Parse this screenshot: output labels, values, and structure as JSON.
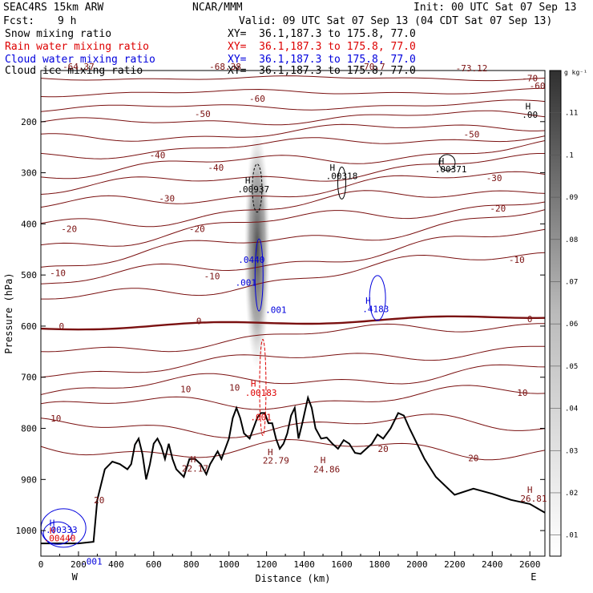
{
  "header": {
    "model": "SEAC4RS 15km ARW",
    "org": "NCAR/MMM",
    "init": "Init: 00 UTC Sat 07 Sep 13",
    "fcst_label": "Fcst:",
    "fcst_value": "9 h",
    "valid": "Valid: 09 UTC Sat 07 Sep 13 (04 CDT Sat 07 Sep 13)",
    "fields": [
      {
        "label": "Snow mixing ratio",
        "xy": "XY=  36.1,187.3 to 175.8, 77.0",
        "color": "#000000"
      },
      {
        "label": "Rain water mixing ratio",
        "xy": "XY=  36.1,187.3 to 175.8, 77.0",
        "color": "#dd0000"
      },
      {
        "label": "Cloud water mixing ratio",
        "xy": "XY=  36.1,187.3 to 175.8, 77.0",
        "color": "#0000dd"
      },
      {
        "label": "Cloud ice mixing ratio",
        "xy": "XY=  36.1,187.3 to 175.8, 77.0",
        "color": "#000000"
      }
    ]
  },
  "chart_data": {
    "type": "cross-section",
    "xlabel": "Distance (km)",
    "ylabel": "Pressure (hPa)",
    "xlim": [
      0,
      2680
    ],
    "ylim": [
      1050,
      100
    ],
    "x_ticks": [
      0,
      200,
      400,
      600,
      800,
      1000,
      1200,
      1400,
      1600,
      1800,
      2000,
      2200,
      2400,
      2600
    ],
    "y_ticks": [
      200,
      300,
      400,
      500,
      600,
      700,
      800,
      900,
      1000
    ],
    "x_end_labels": {
      "left": "W",
      "right": "E"
    },
    "temperature_contours": {
      "color": "#7a1010",
      "levels": [
        -70,
        -60,
        -50,
        -40,
        -30,
        -20,
        -10,
        0,
        10,
        20
      ],
      "labels": [
        {
          "text": "-64.37",
          "x": 200,
          "p": 92
        },
        {
          "text": "-68.38",
          "x": 980,
          "p": 92
        },
        {
          "text": "-70.7",
          "x": 1760,
          "p": 92
        },
        {
          "text": "-73.12",
          "x": 2290,
          "p": 95
        },
        {
          "text": "-70",
          "x": 2600,
          "p": 115
        },
        {
          "text": "-60",
          "x": 1150,
          "p": 155
        },
        {
          "text": "-60",
          "x": 2640,
          "p": 130
        },
        {
          "text": "-50",
          "x": 860,
          "p": 185
        },
        {
          "text": "-50",
          "x": 2290,
          "p": 225
        },
        {
          "text": "-40",
          "x": 620,
          "p": 265
        },
        {
          "text": "-40",
          "x": 930,
          "p": 290
        },
        {
          "text": "-30",
          "x": 670,
          "p": 350
        },
        {
          "text": "-30",
          "x": 2410,
          "p": 310
        },
        {
          "text": "-20",
          "x": 150,
          "p": 410
        },
        {
          "text": "-20",
          "x": 830,
          "p": 410
        },
        {
          "text": "-20",
          "x": 2430,
          "p": 370
        },
        {
          "text": "-10",
          "x": 90,
          "p": 496
        },
        {
          "text": "-10",
          "x": 910,
          "p": 502
        },
        {
          "text": "-10",
          "x": 2530,
          "p": 470
        },
        {
          "text": "0",
          "x": 110,
          "p": 600
        },
        {
          "text": "0",
          "x": 840,
          "p": 590
        },
        {
          "text": "0",
          "x": 2600,
          "p": 586
        },
        {
          "text": "10",
          "x": 80,
          "p": 780
        },
        {
          "text": "10",
          "x": 770,
          "p": 723
        },
        {
          "text": "10",
          "x": 1030,
          "p": 720
        },
        {
          "text": "10",
          "x": 2560,
          "p": 730
        },
        {
          "text": "20",
          "x": 310,
          "p": 940
        },
        {
          "text": "20",
          "x": 1820,
          "p": 840
        },
        {
          "text": "20",
          "x": 2300,
          "p": 858
        }
      ],
      "hl_labels": [
        {
          "text": "H",
          "x": 810,
          "p": 860
        },
        {
          "text": "22.17",
          "x": 820,
          "p": 878
        },
        {
          "text": "H",
          "x": 1220,
          "p": 846
        },
        {
          "text": "22.79",
          "x": 1250,
          "p": 863
        },
        {
          "text": "H",
          "x": 1500,
          "p": 862
        },
        {
          "text": "24.86",
          "x": 1520,
          "p": 880
        },
        {
          "text": "H",
          "x": 2600,
          "p": 920
        },
        {
          "text": "26.81",
          "x": 2620,
          "p": 937
        }
      ]
    },
    "rain_labels": [
      {
        "text": "H",
        "x": 1130,
        "p": 712
      },
      {
        "text": ".00183",
        "x": 1170,
        "p": 730
      },
      {
        "text": ".001",
        "x": 1170,
        "p": 778
      },
      {
        "text": "H",
        "x": 60,
        "p": 1000
      },
      {
        "text": ".00440",
        "x": 100,
        "p": 1015
      }
    ],
    "cloud_water_labels": [
      {
        "text": ".0440",
        "x": 1120,
        "p": 470
      },
      {
        "text": ".001",
        "x": 1090,
        "p": 515
      },
      {
        "text": ".001",
        "x": 1250,
        "p": 568
      },
      {
        "text": "H",
        "x": 1740,
        "p": 550
      },
      {
        "text": ".4183",
        "x": 1780,
        "p": 566
      },
      {
        "text": "H",
        "x": 60,
        "p": 985
      },
      {
        "text": ".00333",
        "x": 110,
        "p": 998
      },
      {
        "text": ".001",
        "x": 270,
        "p": 1060
      }
    ],
    "ice_labels": [
      {
        "text": "H",
        "x": 1100,
        "p": 315
      },
      {
        "text": ".00937",
        "x": 1130,
        "p": 332
      },
      {
        "text": "H",
        "x": 1550,
        "p": 290
      },
      {
        "text": ".00318",
        "x": 1600,
        "p": 306
      },
      {
        "text": "H",
        "x": 2130,
        "p": 277
      },
      {
        "text": ".00371",
        "x": 2180,
        "p": 293
      },
      {
        "text": "H",
        "x": 2590,
        "p": 170
      },
      {
        "text": ".00",
        "x": 2600,
        "p": 186
      }
    ],
    "terrain": [
      [
        0,
        1025
      ],
      [
        200,
        1025
      ],
      [
        280,
        1022
      ],
      [
        300,
        940
      ],
      [
        340,
        880
      ],
      [
        380,
        865
      ],
      [
        420,
        870
      ],
      [
        460,
        880
      ],
      [
        480,
        870
      ],
      [
        500,
        832
      ],
      [
        520,
        820
      ],
      [
        540,
        850
      ],
      [
        560,
        900
      ],
      [
        580,
        870
      ],
      [
        600,
        830
      ],
      [
        620,
        820
      ],
      [
        640,
        835
      ],
      [
        660,
        860
      ],
      [
        680,
        830
      ],
      [
        700,
        860
      ],
      [
        720,
        880
      ],
      [
        760,
        895
      ],
      [
        790,
        860
      ],
      [
        820,
        860
      ],
      [
        850,
        870
      ],
      [
        880,
        890
      ],
      [
        900,
        870
      ],
      [
        940,
        845
      ],
      [
        960,
        860
      ],
      [
        1000,
        820
      ],
      [
        1020,
        780
      ],
      [
        1040,
        760
      ],
      [
        1060,
        780
      ],
      [
        1080,
        810
      ],
      [
        1110,
        820
      ],
      [
        1130,
        800
      ],
      [
        1150,
        780
      ],
      [
        1170,
        770
      ],
      [
        1190,
        770
      ],
      [
        1210,
        790
      ],
      [
        1230,
        790
      ],
      [
        1250,
        820
      ],
      [
        1270,
        840
      ],
      [
        1290,
        830
      ],
      [
        1310,
        810
      ],
      [
        1330,
        775
      ],
      [
        1350,
        760
      ],
      [
        1370,
        820
      ],
      [
        1390,
        790
      ],
      [
        1420,
        740
      ],
      [
        1440,
        760
      ],
      [
        1460,
        800
      ],
      [
        1490,
        820
      ],
      [
        1520,
        818
      ],
      [
        1550,
        830
      ],
      [
        1580,
        840
      ],
      [
        1610,
        823
      ],
      [
        1640,
        830
      ],
      [
        1670,
        848
      ],
      [
        1700,
        850
      ],
      [
        1730,
        840
      ],
      [
        1760,
        830
      ],
      [
        1790,
        812
      ],
      [
        1820,
        820
      ],
      [
        1860,
        800
      ],
      [
        1900,
        770
      ],
      [
        1930,
        775
      ],
      [
        1960,
        800
      ],
      [
        2000,
        830
      ],
      [
        2040,
        860
      ],
      [
        2100,
        895
      ],
      [
        2200,
        930
      ],
      [
        2300,
        918
      ],
      [
        2400,
        928
      ],
      [
        2500,
        940
      ],
      [
        2600,
        948
      ],
      [
        2680,
        965
      ]
    ],
    "colorbar": {
      "unit": "g kg⁻¹",
      "ticks": [
        ".01",
        ".02",
        ".03",
        ".04",
        ".05",
        ".06",
        ".07",
        ".08",
        ".09",
        ".1",
        ".11"
      ]
    }
  }
}
